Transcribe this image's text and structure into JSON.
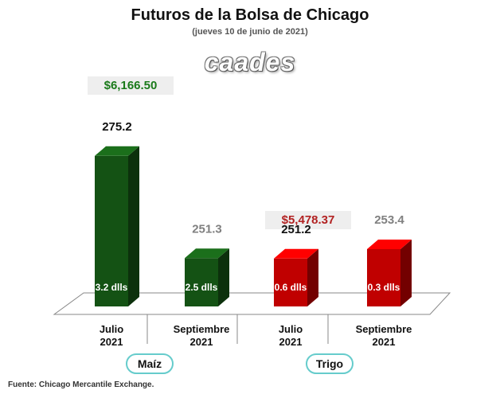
{
  "header": {
    "title": "Futuros de la Bolsa de Chicago",
    "subtitle": "(jueves 10 de junio de 2021)",
    "logo_text": "caades"
  },
  "prices": [
    {
      "text": "$6,166.50",
      "color": "#1a7a1a"
    },
    {
      "text": "$5,478.37",
      "color": "#b22222"
    }
  ],
  "groups": [
    "Maíz",
    "Trigo"
  ],
  "footer": "Fuente: Chicago Mercantile Exchange.",
  "colors": {
    "maiz": "#145214",
    "trigo": "#c00000",
    "label_dark": "#111111",
    "label_grey": "#808080"
  },
  "chart_data": {
    "type": "bar",
    "categories": [
      "Julio 2021",
      "Septiembre 2021",
      "Julio 2021",
      "Septiembre 2021"
    ],
    "category_lines": [
      [
        "Julio",
        "2021"
      ],
      [
        "Septiembre",
        "2021"
      ],
      [
        "Julio",
        "2021"
      ],
      [
        "Septiembre",
        "2021"
      ]
    ],
    "values": [
      275.2,
      251.3,
      251.2,
      253.4
    ],
    "value_labels": [
      "275.2",
      "251.3",
      "251.2",
      "253.4"
    ],
    "inner_labels": [
      "3.2 dlls",
      "2.5 dlls",
      "0.6 dlls",
      "0.3 dlls"
    ],
    "groups": [
      "Maíz",
      "Maíz",
      "Trigo",
      "Trigo"
    ],
    "bar_colors": [
      "#145214",
      "#145214",
      "#c00000",
      "#c00000"
    ],
    "value_label_colors": [
      "#111111",
      "#808080",
      "#111111",
      "#808080"
    ],
    "ylim": [
      240,
      280
    ],
    "grid": false
  }
}
